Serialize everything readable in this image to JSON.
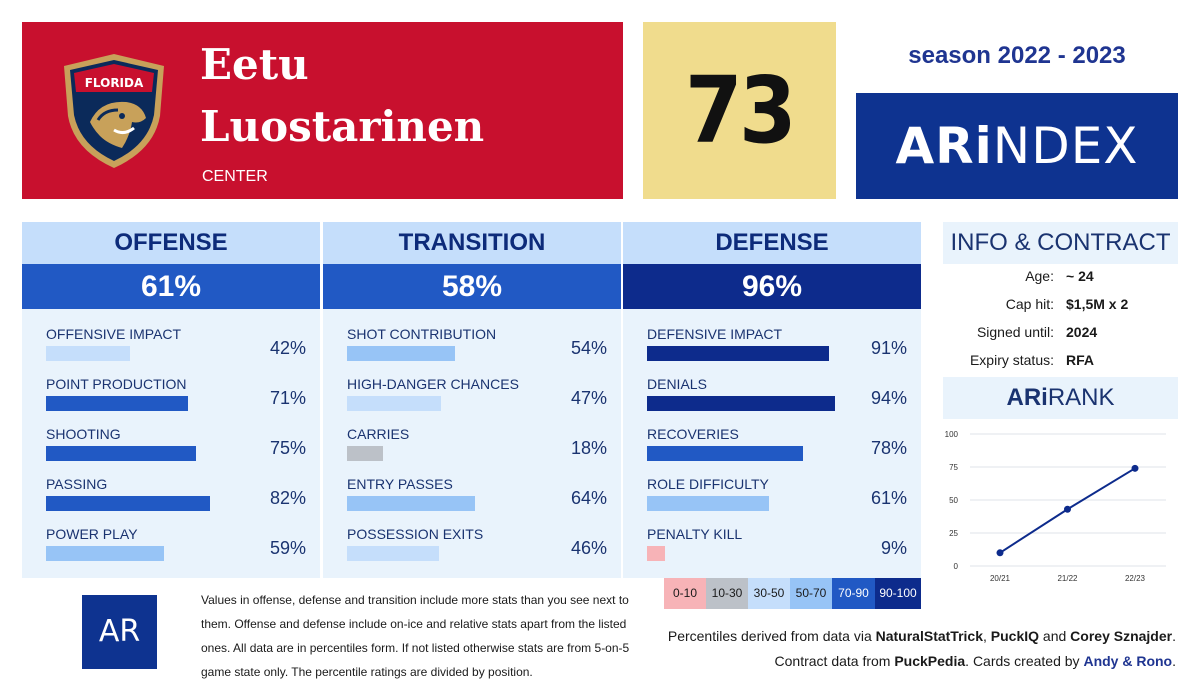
{
  "player": {
    "first_name": "Eetu",
    "last_name": "Luostarinen",
    "position": "CENTER",
    "team_logo_text": "FLORIDA",
    "score": "73",
    "season": "season 2022 - 2023",
    "index_brand_bold": "ARi",
    "index_brand_rest": "NDEX"
  },
  "columns": [
    {
      "title": "OFFENSE",
      "total": "61%",
      "total_color": "#2159c4",
      "stats": [
        {
          "label": "OFFENSIVE IMPACT",
          "pct": "42%",
          "value": 42,
          "color": "#c5defb"
        },
        {
          "label": "POINT PRODUCTION",
          "pct": "71%",
          "value": 71,
          "color": "#2159c4"
        },
        {
          "label": "SHOOTING",
          "pct": "75%",
          "value": 75,
          "color": "#2159c4"
        },
        {
          "label": "PASSING",
          "pct": "82%",
          "value": 82,
          "color": "#2159c4"
        },
        {
          "label": "POWER PLAY",
          "pct": "59%",
          "value": 59,
          "color": "#97c4f6"
        }
      ]
    },
    {
      "title": "TRANSITION",
      "total": "58%",
      "total_color": "#2159c4",
      "stats": [
        {
          "label": "SHOT CONTRIBUTION",
          "pct": "54%",
          "value": 54,
          "color": "#97c4f6"
        },
        {
          "label": "HIGH-DANGER CHANCES",
          "pct": "47%",
          "value": 47,
          "color": "#c5defb"
        },
        {
          "label": "CARRIES",
          "pct": "18%",
          "value": 18,
          "color": "#bcc1c8"
        },
        {
          "label": "ENTRY PASSES",
          "pct": "64%",
          "value": 64,
          "color": "#97c4f6"
        },
        {
          "label": "POSSESSION EXITS",
          "pct": "46%",
          "value": 46,
          "color": "#c5defb"
        }
      ]
    },
    {
      "title": "DEFENSE",
      "total": "96%",
      "total_color": "#0d2b8c",
      "stats": [
        {
          "label": "DEFENSIVE IMPACT",
          "pct": "91%",
          "value": 91,
          "color": "#0d2b8c"
        },
        {
          "label": "DENIALS",
          "pct": "94%",
          "value": 94,
          "color": "#0d2b8c"
        },
        {
          "label": "RECOVERIES",
          "pct": "78%",
          "value": 78,
          "color": "#2159c4"
        },
        {
          "label": "ROLE DIFFICULTY",
          "pct": "61%",
          "value": 61,
          "color": "#97c4f6"
        },
        {
          "label": "PENALTY KILL",
          "pct": "9%",
          "value": 9,
          "color": "#f7b3b7"
        }
      ]
    }
  ],
  "info": {
    "title": "INFO & CONTRACT",
    "rows": [
      {
        "key": "Age:",
        "value": "~ 24"
      },
      {
        "key": "Cap hit:",
        "value": "$1,5M x 2"
      },
      {
        "key": "Signed until:",
        "value": "2024"
      },
      {
        "key": "Expiry status:",
        "value": "RFA"
      }
    ]
  },
  "rank": {
    "title_bold": "ARi",
    "title_rest": "RANK"
  },
  "chart_data": {
    "type": "line",
    "categories": [
      "20/21",
      "21/22",
      "22/23"
    ],
    "series": [
      {
        "values": [
          10,
          43,
          74
        ]
      }
    ],
    "ylim": [
      0,
      100
    ],
    "yticks": [
      "0",
      "25",
      "50",
      "75",
      "100"
    ],
    "grid": true,
    "color": "#0d2b8c"
  },
  "legend": [
    {
      "label": "0-10",
      "bg": "#f7b3b7",
      "fg": "#1a1a1a"
    },
    {
      "label": "10-30",
      "bg": "#bcc1c8",
      "fg": "#1a1a1a"
    },
    {
      "label": "30-50",
      "bg": "#c5defb",
      "fg": "#1a1a1a"
    },
    {
      "label": "50-70",
      "bg": "#97c4f6",
      "fg": "#1a1a1a"
    },
    {
      "label": "70-90",
      "bg": "#2159c4",
      "fg": "#ffffff"
    },
    {
      "label": "90-100",
      "bg": "#0d2b8c",
      "fg": "#ffffff"
    }
  ],
  "footer": {
    "logo_text": "AR",
    "disclaimer": "Values in offense, defense and transition include more stats than you see next to them. Offense and defense include on-ice and relative stats apart from the listed ones. All data are in percentiles form. If not listed otherwise stats are from 5-on-5 game state only. The percentile ratings are divided by position.",
    "credit1_pre": "Percentiles derived from data via ",
    "credit1_src1": "NaturalStatTrick",
    "credit1_sep1": ", ",
    "credit1_src2": "PuckIQ",
    "credit1_sep2": " and ",
    "credit1_src3": "Corey Sznajder",
    "credit1_end": ".",
    "credit2_pre": "Contract data from ",
    "credit2_src": "PuckPedia",
    "credit2_mid": ". Cards created by ",
    "credit2_author": "Andy & Rono",
    "credit2_end": "."
  }
}
